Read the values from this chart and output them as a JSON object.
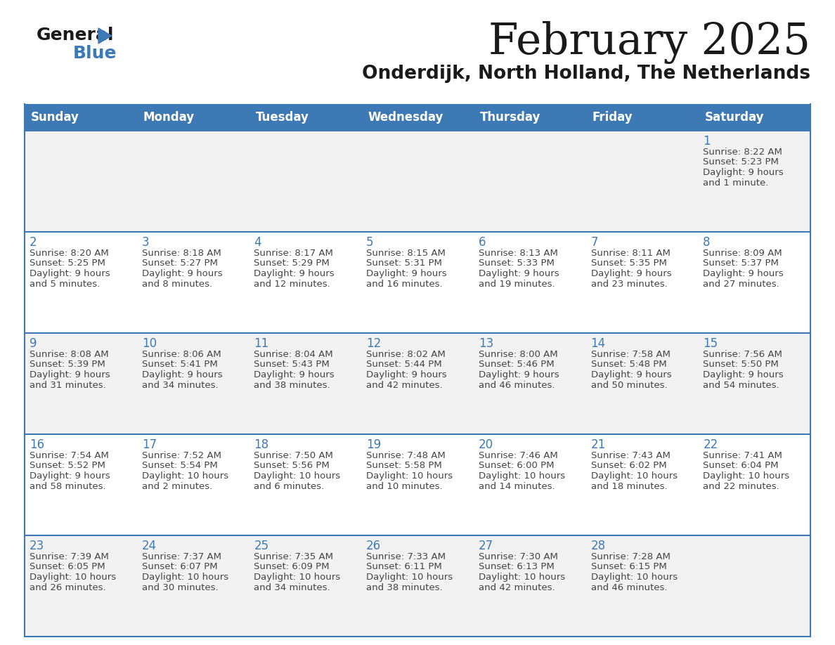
{
  "title": "February 2025",
  "subtitle": "Onderdijk, North Holland, The Netherlands",
  "header_color": "#3d7ab5",
  "header_text_color": "#ffffff",
  "day_names": [
    "Sunday",
    "Monday",
    "Tuesday",
    "Wednesday",
    "Thursday",
    "Friday",
    "Saturday"
  ],
  "bg_color": "#ffffff",
  "cell_bg_light": "#f2f2f2",
  "cell_bg_white": "#ffffff",
  "line_color": "#3d7ab5",
  "text_color": "#444444",
  "day_num_color": "#3d7ab5",
  "calendar_data": [
    [
      null,
      null,
      null,
      null,
      null,
      null,
      {
        "day": 1,
        "sunrise": "8:22 AM",
        "sunset": "5:23 PM",
        "daylight": "9 hours and 1 minute."
      }
    ],
    [
      {
        "day": 2,
        "sunrise": "8:20 AM",
        "sunset": "5:25 PM",
        "daylight": "9 hours and 5 minutes."
      },
      {
        "day": 3,
        "sunrise": "8:18 AM",
        "sunset": "5:27 PM",
        "daylight": "9 hours and 8 minutes."
      },
      {
        "day": 4,
        "sunrise": "8:17 AM",
        "sunset": "5:29 PM",
        "daylight": "9 hours and 12 minutes."
      },
      {
        "day": 5,
        "sunrise": "8:15 AM",
        "sunset": "5:31 PM",
        "daylight": "9 hours and 16 minutes."
      },
      {
        "day": 6,
        "sunrise": "8:13 AM",
        "sunset": "5:33 PM",
        "daylight": "9 hours and 19 minutes."
      },
      {
        "day": 7,
        "sunrise": "8:11 AM",
        "sunset": "5:35 PM",
        "daylight": "9 hours and 23 minutes."
      },
      {
        "day": 8,
        "sunrise": "8:09 AM",
        "sunset": "5:37 PM",
        "daylight": "9 hours and 27 minutes."
      }
    ],
    [
      {
        "day": 9,
        "sunrise": "8:08 AM",
        "sunset": "5:39 PM",
        "daylight": "9 hours and 31 minutes."
      },
      {
        "day": 10,
        "sunrise": "8:06 AM",
        "sunset": "5:41 PM",
        "daylight": "9 hours and 34 minutes."
      },
      {
        "day": 11,
        "sunrise": "8:04 AM",
        "sunset": "5:43 PM",
        "daylight": "9 hours and 38 minutes."
      },
      {
        "day": 12,
        "sunrise": "8:02 AM",
        "sunset": "5:44 PM",
        "daylight": "9 hours and 42 minutes."
      },
      {
        "day": 13,
        "sunrise": "8:00 AM",
        "sunset": "5:46 PM",
        "daylight": "9 hours and 46 minutes."
      },
      {
        "day": 14,
        "sunrise": "7:58 AM",
        "sunset": "5:48 PM",
        "daylight": "9 hours and 50 minutes."
      },
      {
        "day": 15,
        "sunrise": "7:56 AM",
        "sunset": "5:50 PM",
        "daylight": "9 hours and 54 minutes."
      }
    ],
    [
      {
        "day": 16,
        "sunrise": "7:54 AM",
        "sunset": "5:52 PM",
        "daylight": "9 hours and 58 minutes."
      },
      {
        "day": 17,
        "sunrise": "7:52 AM",
        "sunset": "5:54 PM",
        "daylight": "10 hours and 2 minutes."
      },
      {
        "day": 18,
        "sunrise": "7:50 AM",
        "sunset": "5:56 PM",
        "daylight": "10 hours and 6 minutes."
      },
      {
        "day": 19,
        "sunrise": "7:48 AM",
        "sunset": "5:58 PM",
        "daylight": "10 hours and 10 minutes."
      },
      {
        "day": 20,
        "sunrise": "7:46 AM",
        "sunset": "6:00 PM",
        "daylight": "10 hours and 14 minutes."
      },
      {
        "day": 21,
        "sunrise": "7:43 AM",
        "sunset": "6:02 PM",
        "daylight": "10 hours and 18 minutes."
      },
      {
        "day": 22,
        "sunrise": "7:41 AM",
        "sunset": "6:04 PM",
        "daylight": "10 hours and 22 minutes."
      }
    ],
    [
      {
        "day": 23,
        "sunrise": "7:39 AM",
        "sunset": "6:05 PM",
        "daylight": "10 hours and 26 minutes."
      },
      {
        "day": 24,
        "sunrise": "7:37 AM",
        "sunset": "6:07 PM",
        "daylight": "10 hours and 30 minutes."
      },
      {
        "day": 25,
        "sunrise": "7:35 AM",
        "sunset": "6:09 PM",
        "daylight": "10 hours and 34 minutes."
      },
      {
        "day": 26,
        "sunrise": "7:33 AM",
        "sunset": "6:11 PM",
        "daylight": "10 hours and 38 minutes."
      },
      {
        "day": 27,
        "sunrise": "7:30 AM",
        "sunset": "6:13 PM",
        "daylight": "10 hours and 42 minutes."
      },
      {
        "day": 28,
        "sunrise": "7:28 AM",
        "sunset": "6:15 PM",
        "daylight": "10 hours and 46 minutes."
      },
      null
    ]
  ]
}
